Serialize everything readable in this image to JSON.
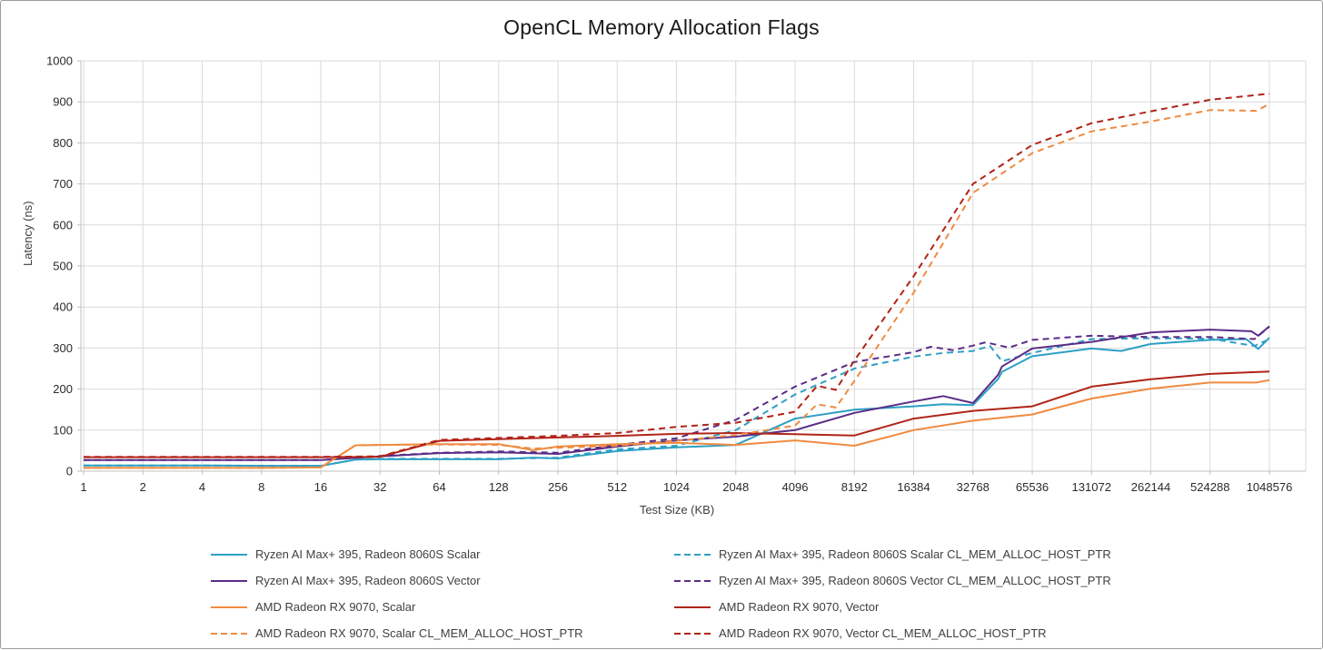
{
  "chart_data": {
    "type": "line",
    "title": "OpenCL Memory Allocation Flags",
    "xlabel": "Test Size (KB)",
    "ylabel": "Latency (ns)",
    "x_scale": "log2",
    "x_tick_labels": [
      "1",
      "2",
      "4",
      "8",
      "16",
      "32",
      "64",
      "128",
      "256",
      "512",
      "1024",
      "2048",
      "4096",
      "8192",
      "16384",
      "32768",
      "65536",
      "131072",
      "262144",
      "524288",
      "1048576"
    ],
    "ylim": [
      0,
      1000
    ],
    "ytick_step": 100,
    "grid": "both",
    "legend_position": "bottom-two-columns",
    "colors": {
      "teal": "#2D9FC4",
      "purple": "#5B2D86",
      "orange": "#EF8B41",
      "dark_red": "#B02418",
      "gridline": "#D9D9D9",
      "axis_line": "#BFBFBF"
    },
    "series": [
      {
        "name": "Ryzen AI Max+ 395, Radeon 8060S Scalar",
        "color": "#2D9FC4",
        "dash": false,
        "points": [
          [
            1,
            14
          ],
          [
            2,
            14
          ],
          [
            4,
            14
          ],
          [
            8,
            13
          ],
          [
            16,
            13
          ],
          [
            24,
            28
          ],
          [
            32,
            29
          ],
          [
            64,
            29
          ],
          [
            128,
            29
          ],
          [
            192,
            33
          ],
          [
            256,
            31
          ],
          [
            512,
            49
          ],
          [
            1024,
            58
          ],
          [
            2048,
            64
          ],
          [
            4096,
            128
          ],
          [
            8192,
            150
          ],
          [
            16384,
            158
          ],
          [
            23170,
            163
          ],
          [
            32768,
            161
          ],
          [
            44000,
            225
          ],
          [
            46000,
            242
          ],
          [
            65536,
            280
          ],
          [
            131072,
            299
          ],
          [
            185000,
            293
          ],
          [
            262144,
            310
          ],
          [
            524288,
            320
          ],
          [
            800000,
            322
          ],
          [
            920000,
            298
          ],
          [
            1048576,
            325
          ]
        ]
      },
      {
        "name": "Ryzen AI Max+ 395, Radeon 8060S Scalar CL_MEM_ALLOC_HOST_PTR",
        "color": "#2D9FC4",
        "dash": true,
        "points": [
          [
            1,
            14
          ],
          [
            2,
            14
          ],
          [
            4,
            14
          ],
          [
            8,
            13
          ],
          [
            16,
            13
          ],
          [
            24,
            28
          ],
          [
            32,
            30
          ],
          [
            64,
            30
          ],
          [
            128,
            30
          ],
          [
            256,
            33
          ],
          [
            512,
            53
          ],
          [
            1024,
            62
          ],
          [
            2048,
            100
          ],
          [
            4096,
            187
          ],
          [
            8192,
            250
          ],
          [
            16384,
            279
          ],
          [
            23170,
            288
          ],
          [
            32768,
            293
          ],
          [
            40000,
            305
          ],
          [
            46000,
            268
          ],
          [
            65536,
            288
          ],
          [
            131072,
            322
          ],
          [
            262144,
            324
          ],
          [
            524288,
            323
          ],
          [
            880000,
            305
          ],
          [
            1048576,
            322
          ]
        ]
      },
      {
        "name": "Ryzen AI Max+ 395, Radeon 8060S Vector",
        "color": "#5B2D86",
        "dash": false,
        "points": [
          [
            1,
            27
          ],
          [
            2,
            27
          ],
          [
            4,
            27
          ],
          [
            8,
            27
          ],
          [
            16,
            27
          ],
          [
            32,
            36
          ],
          [
            64,
            44
          ],
          [
            128,
            46
          ],
          [
            256,
            42
          ],
          [
            512,
            60
          ],
          [
            1024,
            75
          ],
          [
            2048,
            84
          ],
          [
            4096,
            100
          ],
          [
            8192,
            142
          ],
          [
            16384,
            170
          ],
          [
            23170,
            183
          ],
          [
            32768,
            166
          ],
          [
            44000,
            235
          ],
          [
            46000,
            255
          ],
          [
            65536,
            299
          ],
          [
            131072,
            315
          ],
          [
            262144,
            338
          ],
          [
            524288,
            345
          ],
          [
            850000,
            341
          ],
          [
            920000,
            330
          ],
          [
            1048576,
            353
          ]
        ]
      },
      {
        "name": "Ryzen AI Max+ 395, Radeon 8060S Vector CL_MEM_ALLOC_HOST_PTR",
        "color": "#5B2D86",
        "dash": true,
        "points": [
          [
            1,
            27
          ],
          [
            2,
            27
          ],
          [
            4,
            27
          ],
          [
            8,
            27
          ],
          [
            16,
            27
          ],
          [
            32,
            37
          ],
          [
            64,
            45
          ],
          [
            128,
            48
          ],
          [
            256,
            45
          ],
          [
            512,
            64
          ],
          [
            1024,
            80
          ],
          [
            2048,
            125
          ],
          [
            4096,
            206
          ],
          [
            8192,
            266
          ],
          [
            16384,
            290
          ],
          [
            20000,
            303
          ],
          [
            26000,
            295
          ],
          [
            32768,
            306
          ],
          [
            38000,
            314
          ],
          [
            50000,
            301
          ],
          [
            65536,
            320
          ],
          [
            131072,
            330
          ],
          [
            262144,
            327
          ],
          [
            524288,
            327
          ],
          [
            880000,
            322
          ],
          [
            960000,
            337
          ],
          [
            1048576,
            352
          ]
        ]
      },
      {
        "name": "AMD Radeon RX 9070, Scalar",
        "color": "#EF8B41",
        "dash": false,
        "points": [
          [
            1,
            8
          ],
          [
            2,
            8
          ],
          [
            4,
            8
          ],
          [
            8,
            8
          ],
          [
            16,
            9
          ],
          [
            24,
            63
          ],
          [
            32,
            64
          ],
          [
            64,
            66
          ],
          [
            128,
            66
          ],
          [
            192,
            51
          ],
          [
            256,
            60
          ],
          [
            512,
            66
          ],
          [
            1024,
            69
          ],
          [
            2048,
            64
          ],
          [
            4096,
            75
          ],
          [
            8192,
            62
          ],
          [
            16384,
            100
          ],
          [
            32768,
            123
          ],
          [
            65536,
            138
          ],
          [
            131072,
            177
          ],
          [
            262144,
            201
          ],
          [
            524288,
            216
          ],
          [
            900000,
            216
          ],
          [
            1048576,
            222
          ]
        ]
      },
      {
        "name": "AMD Radeon RX 9070, Vector",
        "color": "#B02418",
        "dash": false,
        "points": [
          [
            1,
            34
          ],
          [
            2,
            34
          ],
          [
            4,
            34
          ],
          [
            8,
            34
          ],
          [
            16,
            34
          ],
          [
            32,
            35
          ],
          [
            64,
            74
          ],
          [
            128,
            78
          ],
          [
            256,
            82
          ],
          [
            512,
            86
          ],
          [
            1024,
            91
          ],
          [
            2048,
            93
          ],
          [
            4096,
            90
          ],
          [
            8192,
            87
          ],
          [
            16384,
            128
          ],
          [
            32768,
            147
          ],
          [
            65536,
            158
          ],
          [
            131072,
            206
          ],
          [
            262144,
            224
          ],
          [
            524288,
            237
          ],
          [
            1048576,
            243
          ]
        ]
      },
      {
        "name": "AMD Radeon RX 9070, Scalar CL_MEM_ALLOC_HOST_PTR",
        "color": "#EF8B41",
        "dash": true,
        "points": [
          [
            1,
            8
          ],
          [
            2,
            8
          ],
          [
            4,
            8
          ],
          [
            8,
            8
          ],
          [
            16,
            9
          ],
          [
            24,
            63
          ],
          [
            32,
            64
          ],
          [
            64,
            65
          ],
          [
            128,
            64
          ],
          [
            192,
            55
          ],
          [
            256,
            57
          ],
          [
            512,
            62
          ],
          [
            1024,
            74
          ],
          [
            2048,
            88
          ],
          [
            4096,
            111
          ],
          [
            5300,
            163
          ],
          [
            6600,
            155
          ],
          [
            8192,
            220
          ],
          [
            16384,
            435
          ],
          [
            32768,
            678
          ],
          [
            65536,
            775
          ],
          [
            131072,
            828
          ],
          [
            262144,
            852
          ],
          [
            524288,
            880
          ],
          [
            900000,
            878
          ],
          [
            1048576,
            895
          ]
        ]
      },
      {
        "name": "AMD Radeon RX 9070, Vector CL_MEM_ALLOC_HOST_PTR",
        "color": "#B02418",
        "dash": true,
        "points": [
          [
            1,
            35
          ],
          [
            2,
            35
          ],
          [
            4,
            35
          ],
          [
            8,
            35
          ],
          [
            16,
            35
          ],
          [
            32,
            36
          ],
          [
            64,
            76
          ],
          [
            128,
            81
          ],
          [
            256,
            86
          ],
          [
            512,
            93
          ],
          [
            1024,
            108
          ],
          [
            2048,
            118
          ],
          [
            4096,
            145
          ],
          [
            5300,
            208
          ],
          [
            6600,
            198
          ],
          [
            8192,
            270
          ],
          [
            16384,
            475
          ],
          [
            32768,
            700
          ],
          [
            65536,
            795
          ],
          [
            131072,
            848
          ],
          [
            262144,
            877
          ],
          [
            524288,
            905
          ],
          [
            1048576,
            920
          ]
        ]
      }
    ],
    "legend_columns": {
      "left": [
        0,
        2,
        4,
        6
      ],
      "right": [
        1,
        3,
        5,
        7
      ]
    }
  }
}
